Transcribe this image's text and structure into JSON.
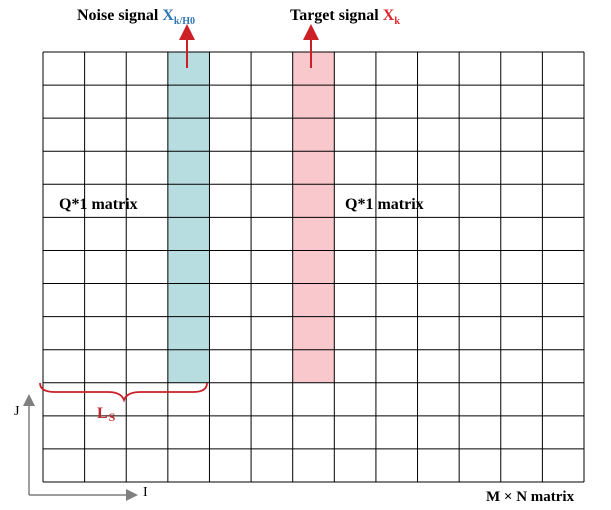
{
  "grid": {
    "rows": 13,
    "cols": 13,
    "noise_column_index": 3,
    "noise_highlight_rows": 10,
    "target_column_index": 6,
    "target_highlight_rows": 10,
    "noise_color": "#b8dde0",
    "target_color": "#f8c8cc",
    "arrow_color": "#cc1f26",
    "brace_color": "#cc1f26",
    "axis_color": "#7f7f7f"
  },
  "labels": {
    "noise_prefix": "Noise signal ",
    "noise_var": "X",
    "noise_sub": "k/H0",
    "target_prefix": "Target signal ",
    "target_var": "X",
    "target_sub": "k",
    "q_left": "Q*1 matrix",
    "q_right": "Q*1 matrix",
    "ls_main": "L",
    "ls_sub": "S",
    "axis_j": "J",
    "axis_i": "I",
    "matrix_caption": "M × N matrix"
  }
}
